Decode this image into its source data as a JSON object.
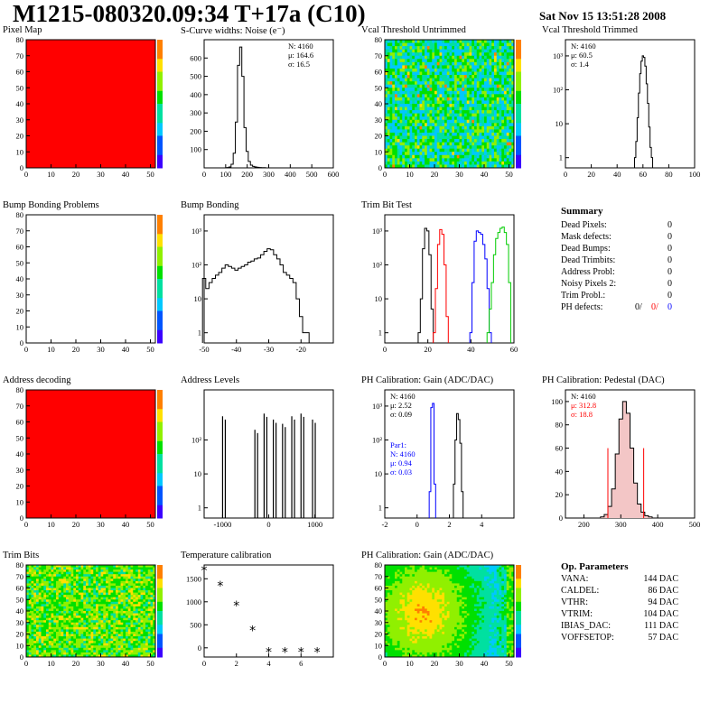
{
  "header": {
    "title": "M1215-080320.09:34 T+17a (C10)",
    "date": "Sat Nov 15 13:51:28 2008"
  },
  "panels": {
    "pixel_map": {
      "title": "Pixel Map"
    },
    "scurve": {
      "title": "S-Curve widths: Noise (e⁻)",
      "stats": [
        "N: 4160",
        "μ: 164.6",
        "σ: 16.5"
      ]
    },
    "vcal_untrimmed": {
      "title": "Vcal Threshold Untrimmed"
    },
    "vcal_trimmed": {
      "title": "Vcal Threshold Trimmed",
      "stats": [
        "N: 4160",
        "μ: 60.5",
        "σ:  1.4"
      ]
    },
    "bump_problems": {
      "title": "Bump Bonding Problems"
    },
    "bump_bonding": {
      "title": "Bump Bonding"
    },
    "trim_bit": {
      "title": "Trim Bit Test"
    },
    "address_decoding": {
      "title": "Address decoding"
    },
    "address_levels": {
      "title": "Address Levels"
    },
    "ph_gain": {
      "title": "PH Calibration: Gain (ADC/DAC)",
      "stats": [
        "N: 4160",
        "μ: 2.52",
        "σ: 0.09"
      ],
      "par1": [
        "Par1:",
        "N: 4160",
        "μ: 0.94",
        "σ: 0.03"
      ]
    },
    "ph_pedestal": {
      "title": "PH Calibration: Pedestal (DAC)",
      "stats": [
        "N: 4160"
      ],
      "red_stats": [
        "μ: 312.8",
        "σ: 18.8"
      ]
    },
    "trim_bits": {
      "title": "Trim Bits"
    },
    "temperature": {
      "title": "Temperature calibration"
    },
    "ph_gain_map": {
      "title": "PH Calibration: Gain (ADC/DAC)"
    }
  },
  "summary": {
    "title": "Summary",
    "rows": [
      {
        "label": "Dead Pixels:",
        "value": "0"
      },
      {
        "label": "Mask defects:",
        "value": "0"
      },
      {
        "label": "Dead Bumps:",
        "value": "0"
      },
      {
        "label": "Dead Trimbits:",
        "value": "0"
      },
      {
        "label": "Address Probl:",
        "value": "0"
      },
      {
        "label": "Noisy Pixels 2:",
        "value": "0"
      },
      {
        "label": "Trim Probl.:",
        "value": "0"
      }
    ],
    "ph_defects": {
      "label": "PH defects:",
      "v1": "0/",
      "v2": "0/",
      "v3": "0"
    }
  },
  "op_params": {
    "title": "Op. Parameters",
    "rows": [
      {
        "label": "VANA:",
        "value": "144 DAC"
      },
      {
        "label": "CALDEL:",
        "value": "86 DAC"
      },
      {
        "label": "VTHR:",
        "value": "94 DAC"
      },
      {
        "label": "VTRIM:",
        "value": "104 DAC"
      },
      {
        "label": "IBIAS_DAC:",
        "value": "111 DAC"
      },
      {
        "label": "VOFFSETOP:",
        "value": "57 DAC"
      }
    ]
  },
  "colors": {
    "hist_black": "#000000",
    "red": "#ff0000",
    "blue": "#0000ff",
    "green": "#00cc00"
  },
  "chart_data": [
    {
      "id": "scurve",
      "type": "histogram",
      "xlim": [
        0,
        600
      ],
      "ylim": [
        0,
        700
      ],
      "xticks": [
        "0",
        "100",
        "200",
        "300",
        "400",
        "500",
        "600"
      ],
      "yticks": [
        "100",
        "200",
        "300",
        "400",
        "500",
        "600"
      ],
      "x": [
        100,
        110,
        120,
        130,
        140,
        150,
        160,
        170,
        180,
        190,
        200,
        210,
        220,
        230,
        240,
        250,
        260,
        270,
        280,
        290
      ],
      "values": [
        0,
        2,
        5,
        20,
        80,
        250,
        560,
        660,
        500,
        220,
        90,
        35,
        15,
        8,
        5,
        3,
        2,
        1,
        1,
        0
      ]
    },
    {
      "id": "vcal_trimmed",
      "type": "histogram",
      "log_y": true,
      "xlim": [
        0,
        100
      ],
      "xticks": [
        "0",
        "20",
        "40",
        "60",
        "80",
        "100"
      ],
      "yticks": [
        "1",
        "10",
        "10²",
        "10³"
      ],
      "x": [
        54,
        55,
        56,
        57,
        58,
        59,
        60,
        61,
        62,
        63,
        64,
        65,
        66,
        67
      ],
      "values": [
        1,
        3,
        15,
        80,
        300,
        700,
        1000,
        900,
        500,
        150,
        40,
        8,
        2,
        1
      ]
    },
    {
      "id": "bump_bonding",
      "type": "histogram",
      "log_y": true,
      "xlim": [
        -50,
        -10
      ],
      "xticks": [
        "-50",
        "-40",
        "-30",
        "-20"
      ],
      "yticks": [
        "1",
        "10",
        "10²",
        "10³"
      ],
      "x": [
        -50,
        -49,
        -48,
        -47,
        -46,
        -45,
        -44,
        -43,
        -42,
        -41,
        -40,
        -39,
        -38,
        -37,
        -36,
        -35,
        -34,
        -33,
        -32,
        -31,
        -30,
        -29,
        -28,
        -27,
        -26,
        -25,
        -24,
        -23,
        -22,
        -21,
        -20,
        -19,
        -18
      ],
      "values": [
        40,
        20,
        30,
        40,
        50,
        60,
        80,
        100,
        90,
        80,
        70,
        80,
        90,
        100,
        120,
        130,
        150,
        160,
        200,
        250,
        300,
        280,
        200,
        150,
        100,
        60,
        50,
        40,
        30,
        10,
        3,
        1,
        1
      ]
    },
    {
      "id": "trim_bit",
      "type": "histogram",
      "log_y": true,
      "xlim": [
        0,
        60
      ],
      "xticks": [
        "0",
        "20",
        "40",
        "60"
      ],
      "yticks": [
        "1",
        "10",
        "10²",
        "10³"
      ],
      "series": [
        {
          "name": "black",
          "x": [
            16,
            17,
            18,
            19,
            20,
            21,
            22
          ],
          "values": [
            1,
            10,
            300,
            1200,
            1000,
            200,
            5
          ]
        },
        {
          "name": "red",
          "x": [
            23,
            24,
            25,
            26,
            27,
            28,
            29
          ],
          "values": [
            1,
            20,
            400,
            1100,
            800,
            100,
            3
          ]
        },
        {
          "name": "blue",
          "x": [
            40,
            41,
            42,
            43,
            44,
            45,
            46,
            47,
            48,
            49
          ],
          "values": [
            1,
            30,
            500,
            1000,
            900,
            800,
            400,
            150,
            20,
            1
          ]
        },
        {
          "name": "green",
          "x": [
            48,
            49,
            50,
            51,
            52,
            53,
            54,
            55,
            56,
            57,
            58
          ],
          "values": [
            1,
            5,
            30,
            200,
            600,
            900,
            1200,
            1300,
            900,
            400,
            30
          ]
        }
      ]
    },
    {
      "id": "address_levels",
      "type": "histogram",
      "log_y": true,
      "xlim": [
        -1400,
        1400
      ],
      "xticks": [
        "-1000",
        "0",
        "1000"
      ],
      "yticks": [
        "1",
        "10",
        "10²"
      ],
      "x": [
        -1000,
        -300,
        -100,
        100,
        300,
        500,
        700,
        950
      ],
      "values": [
        500,
        200,
        600,
        400,
        300,
        500,
        600,
        400
      ]
    },
    {
      "id": "ph_gain",
      "type": "histogram",
      "log_y": true,
      "xlim": [
        -2,
        6
      ],
      "xticks": [
        "-2",
        "0",
        "2",
        "4"
      ],
      "yticks": [
        "1",
        "10",
        "10²",
        "10³"
      ],
      "series": [
        {
          "name": "black",
          "x": [
            2.3,
            2.4,
            2.5,
            2.6,
            2.7,
            2.8
          ],
          "values": [
            5,
            100,
            600,
            400,
            80,
            3
          ]
        },
        {
          "name": "blue",
          "x": [
            0.8,
            0.9,
            1.0,
            1.1
          ],
          "values": [
            3,
            900,
            1200,
            5
          ]
        }
      ]
    },
    {
      "id": "ph_pedestal",
      "type": "histogram",
      "xlim": [
        150,
        500
      ],
      "xticks": [
        "200",
        "300",
        "400",
        "500"
      ],
      "yticks": [
        "0",
        "20",
        "40",
        "60",
        "80",
        "100"
      ],
      "x": [
        250,
        260,
        270,
        280,
        290,
        300,
        310,
        320,
        330,
        340,
        350,
        360,
        370,
        380
      ],
      "values": [
        1,
        3,
        10,
        25,
        55,
        85,
        100,
        90,
        60,
        30,
        12,
        5,
        2,
        1
      ]
    },
    {
      "id": "temperature",
      "type": "scatter",
      "xlim": [
        0,
        8
      ],
      "ylim": [
        -200,
        1800
      ],
      "xticks": [
        "0",
        "2",
        "4",
        "6"
      ],
      "yticks": [
        "0",
        "500",
        "1000",
        "1500"
      ],
      "x": [
        0,
        1,
        2,
        3,
        4,
        5,
        6,
        7
      ],
      "y": [
        1680,
        1350,
        920,
        380,
        -90,
        -90,
        -90,
        -90
      ]
    }
  ]
}
